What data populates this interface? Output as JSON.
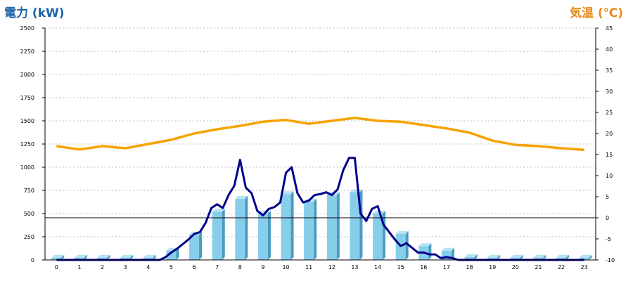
{
  "chart_data": {
    "type": "bar",
    "left_axis": {
      "title": "電力 (kW)",
      "ticks": [
        0,
        250,
        500,
        750,
        1000,
        1250,
        1500,
        1750,
        2000,
        2250,
        2500
      ],
      "range": [
        0,
        2500
      ]
    },
    "right_axis": {
      "title": "気温 (℃)",
      "ticks": [
        -10,
        -5,
        0,
        5,
        10,
        15,
        20,
        25,
        30,
        35,
        40,
        45
      ],
      "range": [
        -10,
        45
      ]
    },
    "categories": [
      "0",
      "1",
      "2",
      "3",
      "4",
      "5",
      "6",
      "7",
      "8",
      "9",
      "10",
      "11",
      "12",
      "13",
      "14",
      "15",
      "16",
      "17",
      "18",
      "19",
      "20",
      "21",
      "22",
      "23"
    ],
    "grid": true,
    "series": [
      {
        "kind": "bar",
        "values": [
          25,
          25,
          25,
          25,
          25,
          100,
          275,
          520,
          660,
          500,
          710,
          630,
          700,
          730,
          500,
          280,
          150,
          100,
          30,
          25,
          25,
          25,
          25,
          25
        ]
      },
      {
        "kind": "line",
        "x": [
          0,
          0.5,
          1,
          1.5,
          2,
          2.5,
          3,
          3.5,
          4,
          4.25,
          4.5,
          4.75,
          5,
          5.25,
          5.5,
          5.75,
          6,
          6.25,
          6.5,
          6.75,
          7,
          7.25,
          7.5,
          7.75,
          8,
          8.25,
          8.5,
          8.75,
          9,
          9.25,
          9.5,
          9.75,
          10,
          10.25,
          10.5,
          10.75,
          11,
          11.25,
          11.5,
          11.75,
          12,
          12.25,
          12.5,
          12.75,
          13,
          13.25,
          13.5,
          13.75,
          14,
          14.25,
          14.5,
          14.75,
          15,
          15.25,
          15.5,
          15.75,
          16,
          16.25,
          16.5,
          16.75,
          17,
          17.25,
          17.5,
          17.75,
          18,
          19,
          20,
          21,
          22,
          23
        ],
        "values": [
          0,
          0,
          0,
          0,
          0,
          0,
          0,
          0,
          0,
          0,
          0,
          30,
          80,
          120,
          170,
          220,
          280,
          300,
          400,
          560,
          600,
          560,
          700,
          800,
          1080,
          780,
          720,
          530,
          480,
          550,
          570,
          620,
          940,
          1000,
          720,
          620,
          640,
          700,
          710,
          730,
          700,
          760,
          970,
          1100,
          1100,
          500,
          420,
          550,
          580,
          380,
          300,
          220,
          150,
          180,
          130,
          80,
          80,
          60,
          60,
          20,
          30,
          20,
          0,
          0,
          0,
          0,
          0,
          0,
          0,
          0
        ]
      },
      {
        "kind": "line",
        "axis": "right",
        "values": [
          17,
          16.2,
          17,
          16.5,
          17.5,
          18.5,
          20,
          21,
          21.8,
          22.8,
          23.2,
          22.3,
          23,
          23.7,
          23.0,
          22.8,
          22,
          21.2,
          20.2,
          18.3,
          17.3,
          17,
          16.5,
          16.1
        ]
      }
    ]
  }
}
